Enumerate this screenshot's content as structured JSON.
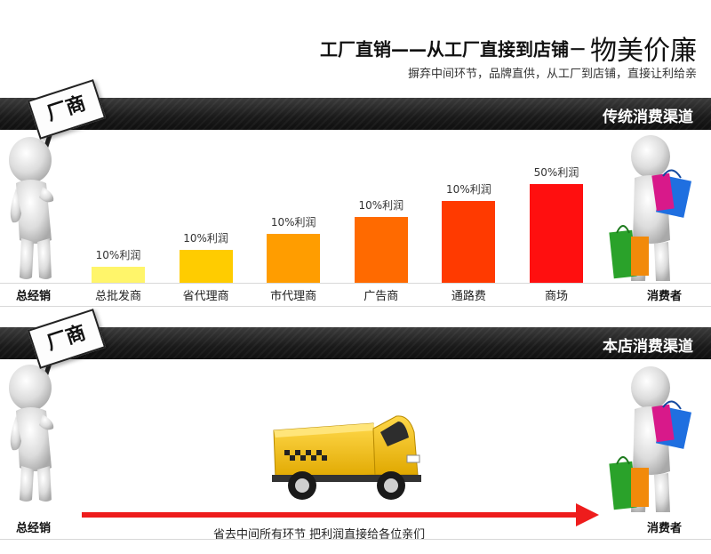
{
  "header": {
    "title_lead": "工厂直销——从工厂直接到店铺－",
    "title_tail": "物美价廉",
    "subtitle": "摒弃中间环节，品牌直供，从工厂到店铺，直接让利给亲"
  },
  "traditional": {
    "bar_label": "传统消费渠道",
    "sign_text": "厂商",
    "left_label": "总经销",
    "right_label": "消费者"
  },
  "direct": {
    "bar_label": "本店消费渠道",
    "sign_text": "厂商",
    "left_label": "总经销",
    "right_label": "消费者",
    "arrow_caption": "省去中间所有环节 把利润直接给各位亲们"
  },
  "colors": {
    "bar_dark": "#1a1a1a",
    "arrow_red": "#ee1c1c",
    "truck_yellow": "#f5c400"
  },
  "icons": {
    "manufacturer": "person-holding-sign-icon",
    "consumer": "person-with-shopping-bags-icon",
    "delivery": "delivery-truck-icon"
  },
  "chart_data": {
    "type": "bar",
    "categories": [
      "总批发商",
      "省代理商",
      "市代理商",
      "广告商",
      "通路费",
      "商场"
    ],
    "series": [
      {
        "values": [
          1,
          2,
          3,
          4,
          5,
          6
        ]
      }
    ],
    "data_labels": [
      "10%利润",
      "10%利润",
      "10%利润",
      "10%利润",
      "10%利润",
      "50%利润"
    ],
    "colors": [
      "#fff56a",
      "#ffcc00",
      "#ff9d00",
      "#ff6a00",
      "#ff3a00",
      "#ff0f0f"
    ],
    "title": "",
    "xlabel": "",
    "ylabel": ""
  }
}
